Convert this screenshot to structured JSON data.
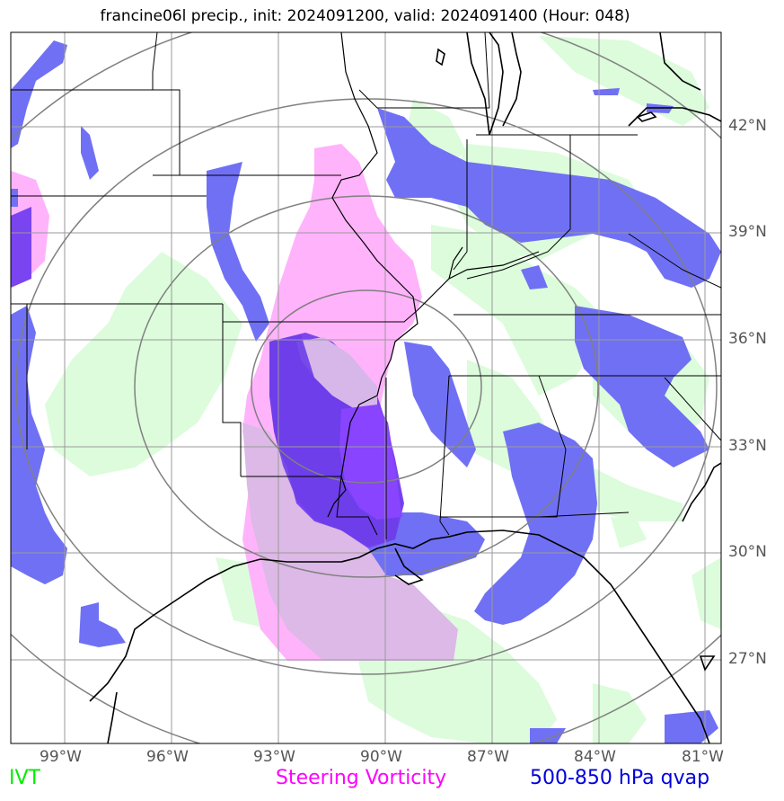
{
  "title": "francine06l precip., init: 2024091200, valid: 2024091400 (Hour: 048)",
  "lon_labels": [
    "99°W",
    "96°W",
    "93°W",
    "90°W",
    "87°W",
    "84°W",
    "81°W"
  ],
  "lat_labels": [
    "42°N",
    "39°N",
    "36°N",
    "33°N",
    "30°N",
    "27°N"
  ],
  "legend": {
    "ivt": {
      "label": "IVT",
      "color": "#00ee00"
    },
    "vorticity": {
      "label": "Steering Vorticity",
      "color": "#ff00ff"
    },
    "qvap": {
      "label": "500-850 hPa qvap",
      "color": "#0000dd"
    }
  },
  "map": {
    "projection": "lat-lon",
    "lon_range": [
      "100°W",
      "80.5°W"
    ],
    "lat_range": [
      "25°N",
      "44.5°N"
    ],
    "range_rings": 4,
    "storm": "francine06l"
  }
}
